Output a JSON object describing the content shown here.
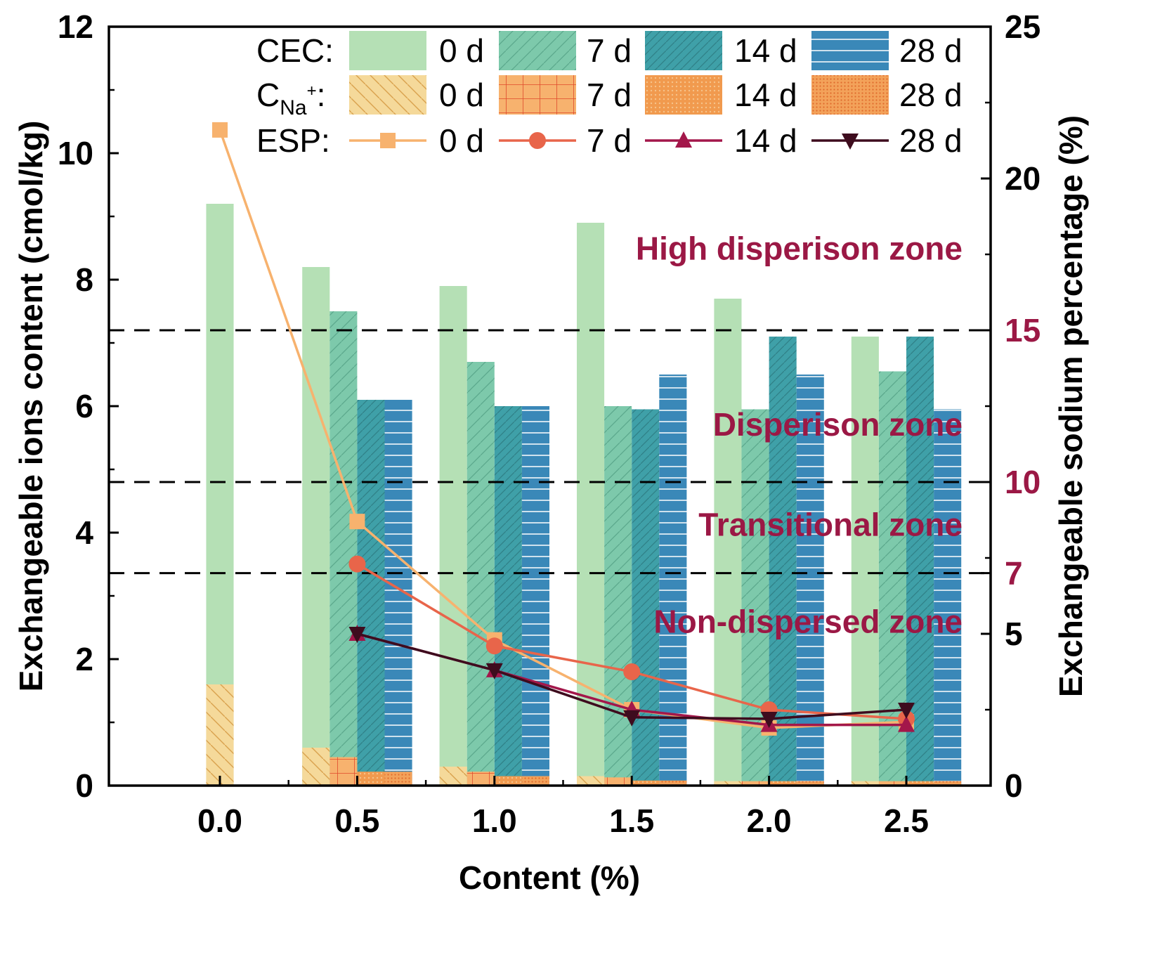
{
  "chart_data": {
    "type": "bar+line",
    "x_categories": [
      0.0,
      0.5,
      1.0,
      1.5,
      2.0,
      2.5
    ],
    "x_tick_labels": [
      "0.0",
      "0.5",
      "1.0",
      "1.5",
      "2.0",
      "2.5"
    ],
    "xlabel": "Content (%)",
    "ylabel_left": "Exchangeable ions content (cmol/kg)",
    "ylabel_right": "Exchangeable sodium percentage (%)",
    "ylim_left": [
      0,
      12
    ],
    "yticks_left": [
      0,
      2,
      4,
      6,
      8,
      10,
      12
    ],
    "ylim_right": [
      0,
      25
    ],
    "yticks_right": [
      0,
      5,
      10,
      15,
      20,
      25
    ],
    "yticks_right_extra": [
      7
    ],
    "days": [
      "0 d",
      "7 d",
      "14 d",
      "28 d"
    ],
    "legend": {
      "cec_label": "CEC:",
      "cna_label_main": "C",
      "cna_label_sub": "Na",
      "cna_label_sup": "+",
      "cna_label_colon": ":",
      "esp_label": "ESP:"
    },
    "cec_series": [
      {
        "name": "0 d",
        "values": [
          9.2,
          8.2,
          7.9,
          8.9,
          7.7,
          7.1
        ],
        "color": "#b5e0b5"
      },
      {
        "name": "7 d",
        "values": [
          null,
          7.5,
          6.7,
          6.0,
          5.95,
          6.55
        ],
        "color": "#7dc9ab"
      },
      {
        "name": "14 d",
        "values": [
          null,
          6.1,
          6.0,
          5.95,
          7.1,
          7.1
        ],
        "color": "#3fa0a8"
      },
      {
        "name": "28 d",
        "values": [
          null,
          6.1,
          6.0,
          6.5,
          6.5,
          5.95
        ],
        "color": "#3a88b8"
      }
    ],
    "cna_series": [
      {
        "name": "0 d",
        "values": [
          1.6,
          0.6,
          0.3,
          0.15,
          0.07,
          0.07
        ],
        "color": "#f5d99a"
      },
      {
        "name": "7 d",
        "values": [
          null,
          0.45,
          0.22,
          0.13,
          0.07,
          0.07
        ],
        "color": "#f7b26e"
      },
      {
        "name": "14 d",
        "values": [
          null,
          0.22,
          0.15,
          0.08,
          0.07,
          0.07
        ],
        "color": "#f19a4e"
      },
      {
        "name": "28 d",
        "values": [
          null,
          0.22,
          0.15,
          0.08,
          0.07,
          0.07
        ],
        "color": "#f3a25a"
      }
    ],
    "esp_series": [
      {
        "name": "0 d",
        "marker": "square",
        "color": "#f7b26e",
        "values": [
          21.6,
          8.7,
          4.8,
          2.5,
          1.9,
          2.1
        ]
      },
      {
        "name": "7 d",
        "marker": "circle",
        "color": "#e8654a",
        "values": [
          null,
          7.3,
          4.6,
          3.75,
          2.5,
          2.2
        ]
      },
      {
        "name": "14 d",
        "marker": "triangle-up",
        "color": "#a3174a",
        "values": [
          null,
          5.0,
          3.8,
          2.5,
          2.0,
          2.0
        ]
      },
      {
        "name": "28 d",
        "marker": "triangle-down",
        "color": "#3e0c1e",
        "values": [
          null,
          5.0,
          3.8,
          2.25,
          2.2,
          2.5
        ]
      }
    ],
    "threshold_lines_right": [
      15,
      10,
      7
    ],
    "zones": [
      {
        "label": "High disperison zone",
        "level": 17.7
      },
      {
        "label": "Disperison zone",
        "level": 11.9
      },
      {
        "label": "Transitional zone",
        "level": 8.6
      },
      {
        "label": "Non-dispersed zone",
        "level": 5.4
      }
    ]
  }
}
